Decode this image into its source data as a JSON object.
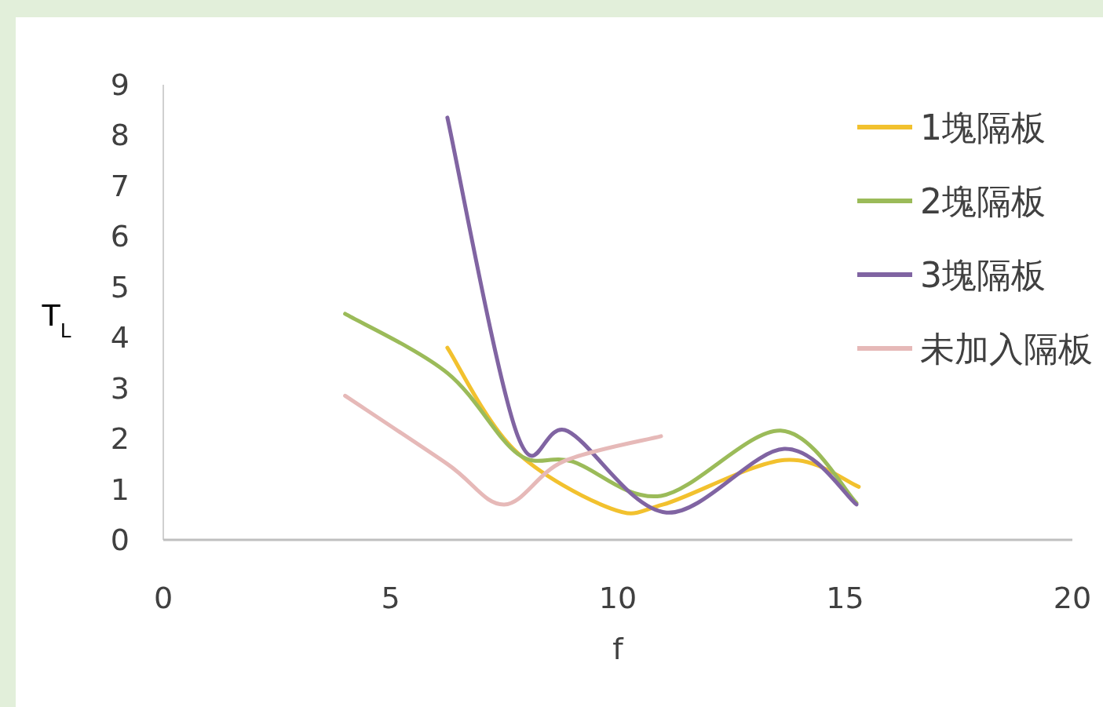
{
  "chart_data": {
    "type": "line",
    "xlabel": "f",
    "ylabel": "T$_{L}$",
    "xlim": [
      0,
      20
    ],
    "ylim": [
      0,
      9
    ],
    "xticks": [
      0,
      5,
      10,
      15,
      20
    ],
    "yticks": [
      0,
      1,
      2,
      3,
      4,
      5,
      6,
      7,
      8,
      9
    ],
    "grid": false,
    "legend": "top right",
    "marker": "none",
    "line_style": "solid",
    "series": [
      {
        "name": "1塊隔板",
        "color": "#f2c12e",
        "x": [
          6.25,
          7.7,
          9.85,
          11,
          13.66,
          15.3
        ],
        "values": [
          3.8,
          1.8,
          0.62,
          0.7,
          1.58,
          1.05
        ]
      },
      {
        "name": "2塊隔板",
        "color": "#9bbb59",
        "x": [
          4,
          6.25,
          7.8,
          9,
          10.95,
          13.58,
          15.25
        ],
        "values": [
          4.47,
          3.3,
          1.7,
          1.55,
          0.87,
          2.16,
          0.73
        ]
      },
      {
        "name": "3塊隔板",
        "color": "#8064a2",
        "x": [
          6.25,
          7.8,
          8.9,
          11.07,
          13.66,
          15.25
        ],
        "values": [
          8.35,
          2.05,
          2.15,
          0.54,
          1.8,
          0.7
        ]
      },
      {
        "name": "未加入隔板",
        "color": "#e6b9b8",
        "x": [
          4,
          6.25,
          7.5,
          8.8,
          10.95
        ],
        "values": [
          2.85,
          1.5,
          0.7,
          1.55,
          2.05
        ]
      }
    ]
  }
}
